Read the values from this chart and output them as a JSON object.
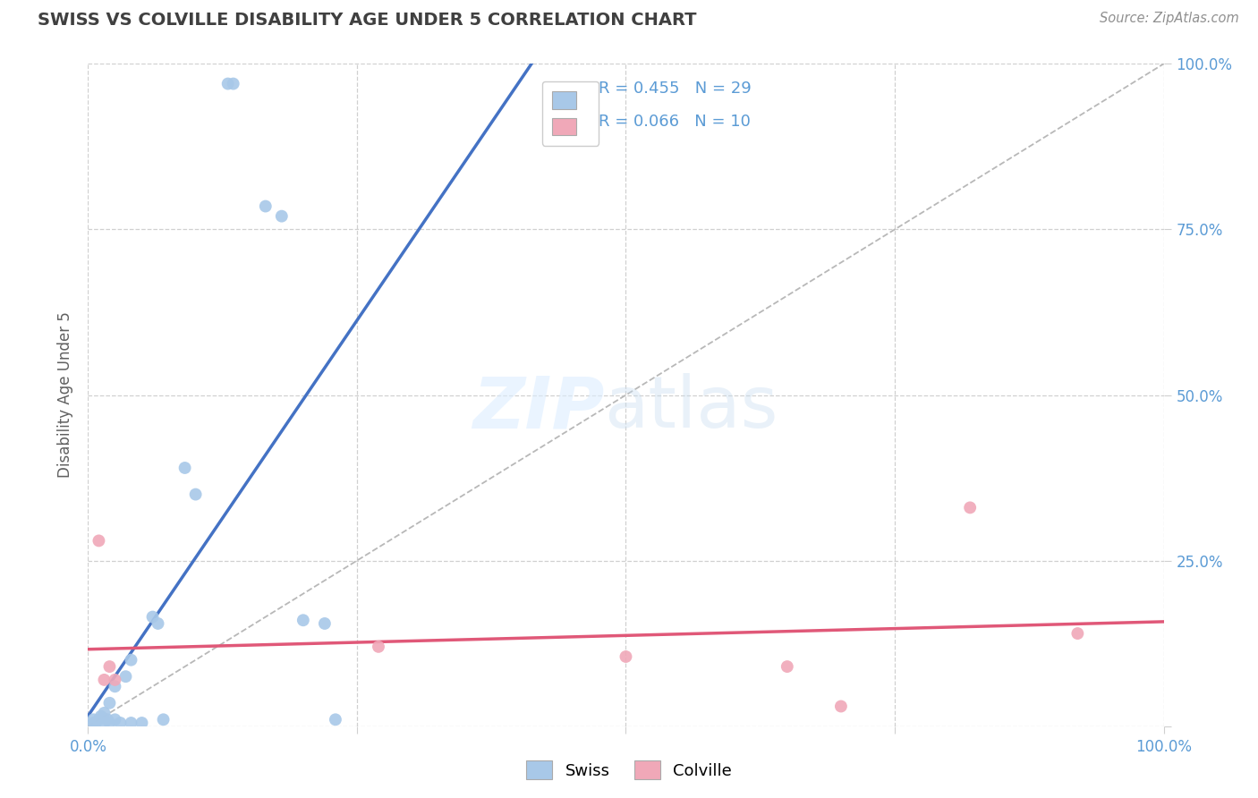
{
  "title": "SWISS VS COLVILLE DISABILITY AGE UNDER 5 CORRELATION CHART",
  "source": "Source: ZipAtlas.com",
  "ylabel": "Disability Age Under 5",
  "xlim": [
    0.0,
    1.0
  ],
  "ylim": [
    0.0,
    1.0
  ],
  "ytick_positions": [
    0.0,
    0.25,
    0.5,
    0.75,
    1.0
  ],
  "xtick_positions": [
    0.0,
    0.25,
    0.5,
    0.75,
    1.0
  ],
  "swiss_x": [
    0.005,
    0.005,
    0.007,
    0.01,
    0.012,
    0.015,
    0.015,
    0.018,
    0.02,
    0.02,
    0.025,
    0.025,
    0.03,
    0.035,
    0.04,
    0.04,
    0.05,
    0.06,
    0.065,
    0.07,
    0.09,
    0.1,
    0.13,
    0.135,
    0.165,
    0.18,
    0.2,
    0.22,
    0.23
  ],
  "swiss_y": [
    0.005,
    0.01,
    0.005,
    0.01,
    0.015,
    0.005,
    0.02,
    0.01,
    0.005,
    0.035,
    0.01,
    0.06,
    0.005,
    0.075,
    0.005,
    0.1,
    0.005,
    0.165,
    0.155,
    0.01,
    0.39,
    0.35,
    0.97,
    0.97,
    0.785,
    0.77,
    0.16,
    0.155,
    0.01
  ],
  "colville_x": [
    0.01,
    0.015,
    0.02,
    0.025,
    0.27,
    0.5,
    0.65,
    0.7,
    0.82,
    0.92
  ],
  "colville_y": [
    0.28,
    0.07,
    0.09,
    0.07,
    0.12,
    0.105,
    0.09,
    0.03,
    0.33,
    0.14
  ],
  "swiss_R": 0.455,
  "swiss_N": 29,
  "colville_R": 0.066,
  "colville_N": 10,
  "swiss_color": "#a8c8e8",
  "colville_color": "#f0a8b8",
  "swiss_line_color": "#4472c4",
  "colville_line_color": "#e05878",
  "diagonal_color": "#b8b8b8",
  "background_color": "#ffffff",
  "grid_color": "#d0d0d0",
  "tick_color": "#5b9bd5",
  "title_color": "#404040",
  "ylabel_color": "#606060",
  "source_color": "#909090"
}
